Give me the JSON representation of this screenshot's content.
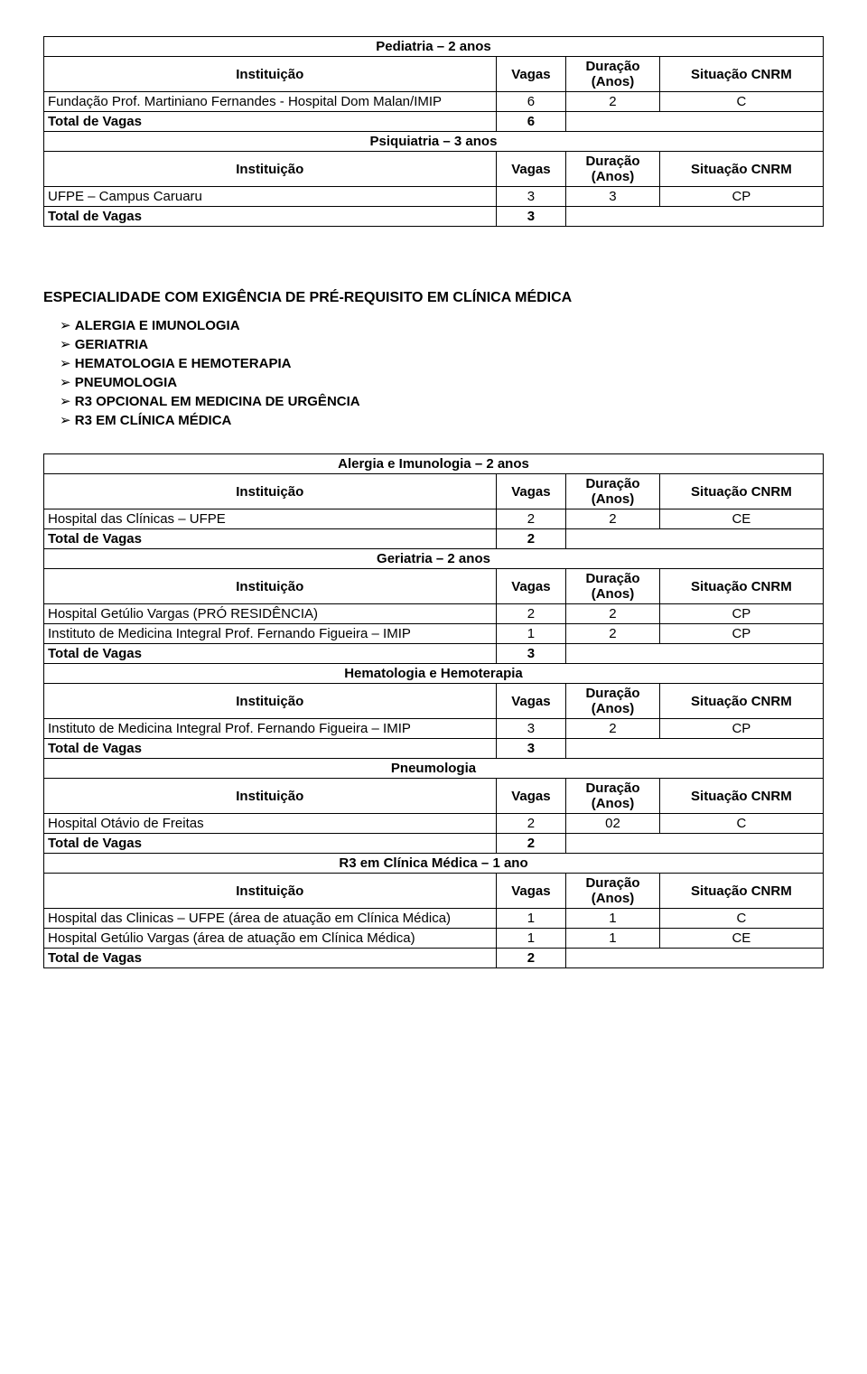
{
  "common": {
    "instituicao": "Instituição",
    "vagas": "Vagas",
    "duracao": "Duração (Anos)",
    "situacao": "Situação CNRM",
    "total": "Total de Vagas"
  },
  "table1": {
    "title1": "Pediatria – 2 anos",
    "rows1": [
      {
        "inst": "Fundação Prof. Martiniano Fernandes - Hospital Dom Malan/IMIP",
        "vagas": "6",
        "dur": "2",
        "sit": "C"
      }
    ],
    "total1": "6",
    "title2": "Psiquiatria – 3 anos",
    "rows2": [
      {
        "inst": "UFPE – Campus Caruaru",
        "vagas": "3",
        "dur": "3",
        "sit": "CP"
      }
    ],
    "total2": "3"
  },
  "spec": {
    "heading": "ESPECIALIDADE COM EXIGÊNCIA DE PRÉ-REQUISITO EM CLÍNICA MÉDICA",
    "items": [
      "ALERGIA E IMUNOLOGIA",
      "GERIATRIA",
      "HEMATOLOGIA E HEMOTERAPIA",
      "PNEUMOLOGIA",
      "R3 OPCIONAL EM MEDICINA DE URGÊNCIA",
      "R3 EM CLÍNICA MÉDICA"
    ]
  },
  "table2": {
    "sec1": {
      "title": "Alergia e Imunologia – 2 anos",
      "rows": [
        {
          "inst": "Hospital das Clínicas – UFPE",
          "vagas": "2",
          "dur": "2",
          "sit": "CE"
        }
      ],
      "total": "2"
    },
    "sec2": {
      "title": "Geriatria – 2 anos",
      "rows": [
        {
          "inst": "Hospital Getúlio Vargas (PRÓ RESIDÊNCIA)",
          "vagas": "2",
          "dur": "2",
          "sit": "CP"
        },
        {
          "inst": "Instituto de Medicina Integral Prof. Fernando Figueira – IMIP",
          "vagas": "1",
          "dur": "2",
          "sit": "CP"
        }
      ],
      "total": "3"
    },
    "sec3": {
      "title": "Hematologia e Hemoterapia",
      "rows": [
        {
          "inst": "Instituto de Medicina Integral Prof. Fernando Figueira – IMIP",
          "vagas": "3",
          "dur": "2",
          "sit": "CP"
        }
      ],
      "total": "3"
    },
    "sec4": {
      "title": "Pneumologia",
      "rows": [
        {
          "inst": "Hospital Otávio de Freitas",
          "vagas": "2",
          "dur": "02",
          "sit": "C"
        }
      ],
      "total": "2"
    },
    "sec5": {
      "title": "R3 em Clínica Médica – 1 ano",
      "rows": [
        {
          "inst": "Hospital das Clinicas – UFPE (área de atuação em Clínica Médica)",
          "vagas": "1",
          "dur": "1",
          "sit": "C"
        },
        {
          "inst": "Hospital Getúlio Vargas (área de atuação em Clínica Médica)",
          "vagas": "1",
          "dur": "1",
          "sit": "CE"
        }
      ],
      "total": "2"
    }
  }
}
